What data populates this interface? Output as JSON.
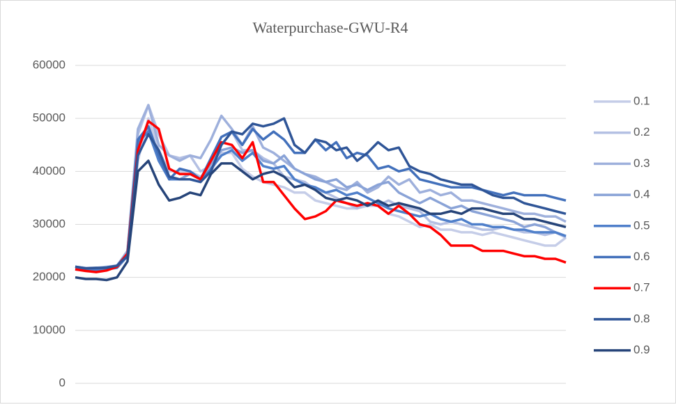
{
  "chart_data": {
    "type": "line",
    "title": "Waterpurchase-GWU-R4",
    "categories": [
      null,
      null,
      null,
      null,
      null,
      null,
      null,
      null,
      null,
      null,
      null,
      null,
      null,
      null,
      null,
      null,
      null,
      null,
      null,
      null,
      null,
      null,
      null,
      null,
      null,
      null,
      null,
      null,
      null,
      null,
      null,
      null,
      null,
      null,
      null,
      null,
      null,
      null,
      null,
      null,
      null,
      null,
      null,
      null,
      null,
      null,
      null,
      null
    ],
    "ylim": [
      0,
      60000
    ],
    "yticks": [
      0,
      10000,
      20000,
      30000,
      40000,
      50000,
      60000
    ],
    "grid": true,
    "legend": "right",
    "series": [
      {
        "name": "0.1",
        "color": "#c5cde8",
        "values": [
          22000,
          21800,
          21800,
          21900,
          22200,
          24500,
          42000,
          50000,
          44000,
          40000,
          40000,
          40000,
          39000,
          40000,
          43500,
          43500,
          40500,
          39000,
          38000,
          37500,
          37000,
          36000,
          36000,
          34500,
          34000,
          33500,
          33000,
          33000,
          33500,
          33500,
          32000,
          31500,
          30500,
          29500,
          30000,
          29000,
          29000,
          28500,
          28500,
          28000,
          28500,
          28000,
          27500,
          27000,
          26500,
          26000,
          26000,
          27500
        ]
      },
      {
        "name": "0.2",
        "color": "#b4c0e3",
        "values": [
          22000,
          21800,
          21800,
          22000,
          22200,
          25000,
          47000,
          52500,
          47000,
          43000,
          42500,
          43000,
          40000,
          41000,
          45000,
          47500,
          44000,
          44000,
          42500,
          41500,
          39000,
          38500,
          38000,
          36500,
          36000,
          35000,
          34000,
          33000,
          34000,
          33500,
          34500,
          33500,
          33000,
          32500,
          30500,
          30000,
          30500,
          30000,
          29500,
          29000,
          29000,
          29500,
          29000,
          28500,
          28500,
          28000,
          28500,
          27500
        ]
      },
      {
        "name": "0.3",
        "color": "#9eb0dc",
        "values": [
          22000,
          21700,
          21800,
          21800,
          22100,
          25000,
          48000,
          52500,
          45000,
          43000,
          42000,
          43000,
          42500,
          46000,
          50500,
          48000,
          45000,
          48500,
          44500,
          43500,
          42000,
          40500,
          39500,
          39000,
          38000,
          37000,
          36500,
          38000,
          36000,
          37000,
          39000,
          37500,
          38500,
          36000,
          36500,
          35500,
          36000,
          34500,
          34500,
          34000,
          33500,
          33000,
          32500,
          32000,
          32000,
          31500,
          31500,
          30500
        ]
      },
      {
        "name": "0.4",
        "color": "#8aa3d7",
        "values": [
          21700,
          21500,
          21500,
          21700,
          22000,
          24000,
          45000,
          48000,
          42000,
          39000,
          38500,
          39500,
          38500,
          41500,
          44000,
          44500,
          43500,
          44000,
          42000,
          41500,
          43000,
          40500,
          39500,
          38500,
          38000,
          38500,
          37000,
          37500,
          36500,
          37500,
          38000,
          36000,
          35000,
          34000,
          35000,
          34000,
          33000,
          33500,
          32500,
          32000,
          31500,
          31000,
          30500,
          29500,
          30000,
          29500,
          28500,
          27800
        ]
      },
      {
        "name": "0.5",
        "color": "#4f7fca",
        "values": [
          21500,
          21300,
          21300,
          21500,
          21800,
          24000,
          45500,
          47500,
          42000,
          38500,
          38500,
          38500,
          38000,
          40500,
          43000,
          44000,
          42000,
          43500,
          41000,
          40500,
          41000,
          38500,
          37500,
          37000,
          36000,
          36500,
          35500,
          36000,
          35000,
          34000,
          33000,
          32500,
          32000,
          31500,
          32000,
          31000,
          30500,
          31000,
          30000,
          30000,
          29500,
          29500,
          29000,
          29000,
          28500,
          28500,
          28500,
          27800
        ]
      },
      {
        "name": "0.6",
        "color": "#4270bb",
        "values": [
          22000,
          21700,
          21700,
          21900,
          22200,
          24500,
          46000,
          48500,
          43000,
          38500,
          40500,
          40000,
          38500,
          42500,
          46500,
          47500,
          45000,
          48000,
          46000,
          47500,
          46000,
          43500,
          43500,
          46000,
          44000,
          45500,
          42500,
          43500,
          43000,
          40500,
          41000,
          40000,
          40500,
          38500,
          38000,
          37500,
          37000,
          37000,
          37000,
          36500,
          36000,
          35500,
          36000,
          35500,
          35500,
          35500,
          35000,
          34500
        ]
      },
      {
        "name": "0.7",
        "color": "#ff0000",
        "values": [
          21500,
          21200,
          21000,
          21300,
          22000,
          24500,
          44000,
          49500,
          48000,
          40500,
          39500,
          39500,
          38500,
          42000,
          45500,
          45000,
          42500,
          45500,
          38000,
          38000,
          35500,
          33000,
          31000,
          31500,
          32500,
          34500,
          34000,
          33500,
          34000,
          33500,
          32000,
          33500,
          32000,
          30000,
          29500,
          28000,
          26000,
          26000,
          26000,
          25000,
          25000,
          25000,
          24500,
          24000,
          24000,
          23500,
          23500,
          22800
        ]
      },
      {
        "name": "0.8",
        "color": "#2f5597",
        "values": [
          22000,
          21700,
          21800,
          21800,
          22200,
          24000,
          43000,
          47000,
          44000,
          39000,
          38500,
          38500,
          38000,
          40000,
          45000,
          47500,
          47000,
          49000,
          48500,
          49000,
          50000,
          45000,
          43500,
          46000,
          45500,
          44000,
          44500,
          42000,
          43500,
          45500,
          44000,
          44500,
          41000,
          40000,
          39500,
          38500,
          38000,
          37500,
          37500,
          36500,
          35500,
          35000,
          35000,
          34000,
          33500,
          33000,
          32500,
          32000
        ]
      },
      {
        "name": "0.9",
        "color": "#264479",
        "values": [
          20000,
          19700,
          19700,
          19500,
          20000,
          23000,
          40000,
          42000,
          37500,
          34500,
          35000,
          36000,
          35500,
          39500,
          41500,
          41500,
          40000,
          38500,
          39500,
          40000,
          39000,
          37000,
          37500,
          36500,
          35000,
          34500,
          35000,
          34500,
          33500,
          34500,
          33500,
          34000,
          33500,
          33000,
          32000,
          32000,
          32500,
          32000,
          33000,
          33000,
          32500,
          32000,
          32000,
          31000,
          31000,
          30500,
          30000,
          29500
        ]
      }
    ]
  }
}
